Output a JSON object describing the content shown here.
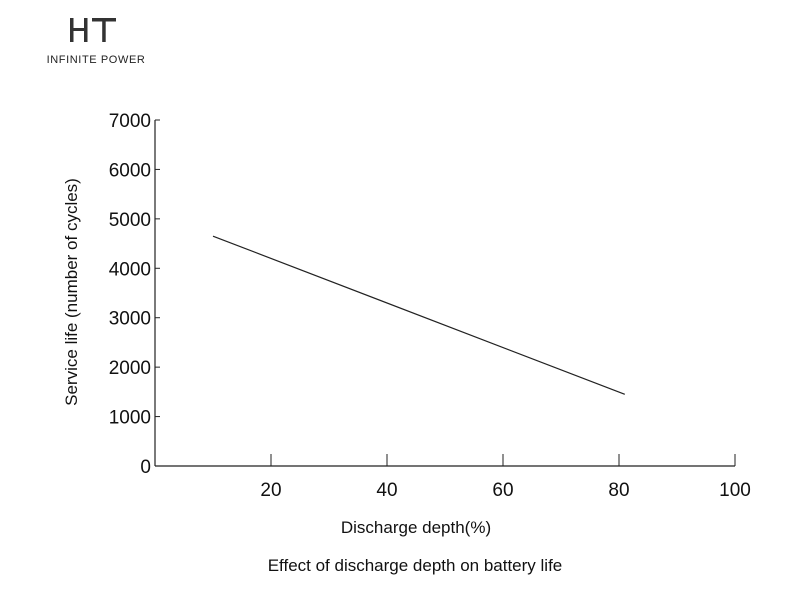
{
  "logo": {
    "name": "HT",
    "tagline": "INFINITE POWER"
  },
  "chart_data": {
    "type": "line",
    "caption": "Effect of discharge depth on battery life",
    "xlabel": "Discharge depth(%)",
    "ylabel": "Service life (number of cycles)",
    "xlim": [
      0,
      100
    ],
    "ylim": [
      0,
      7000
    ],
    "x_ticks": [
      20,
      40,
      60,
      80,
      100
    ],
    "y_ticks": [
      0,
      1000,
      2000,
      3000,
      4000,
      5000,
      6000,
      7000
    ],
    "grid": false,
    "series": [
      {
        "x": [
          10,
          81
        ],
        "y": [
          4650,
          1450
        ]
      }
    ]
  }
}
